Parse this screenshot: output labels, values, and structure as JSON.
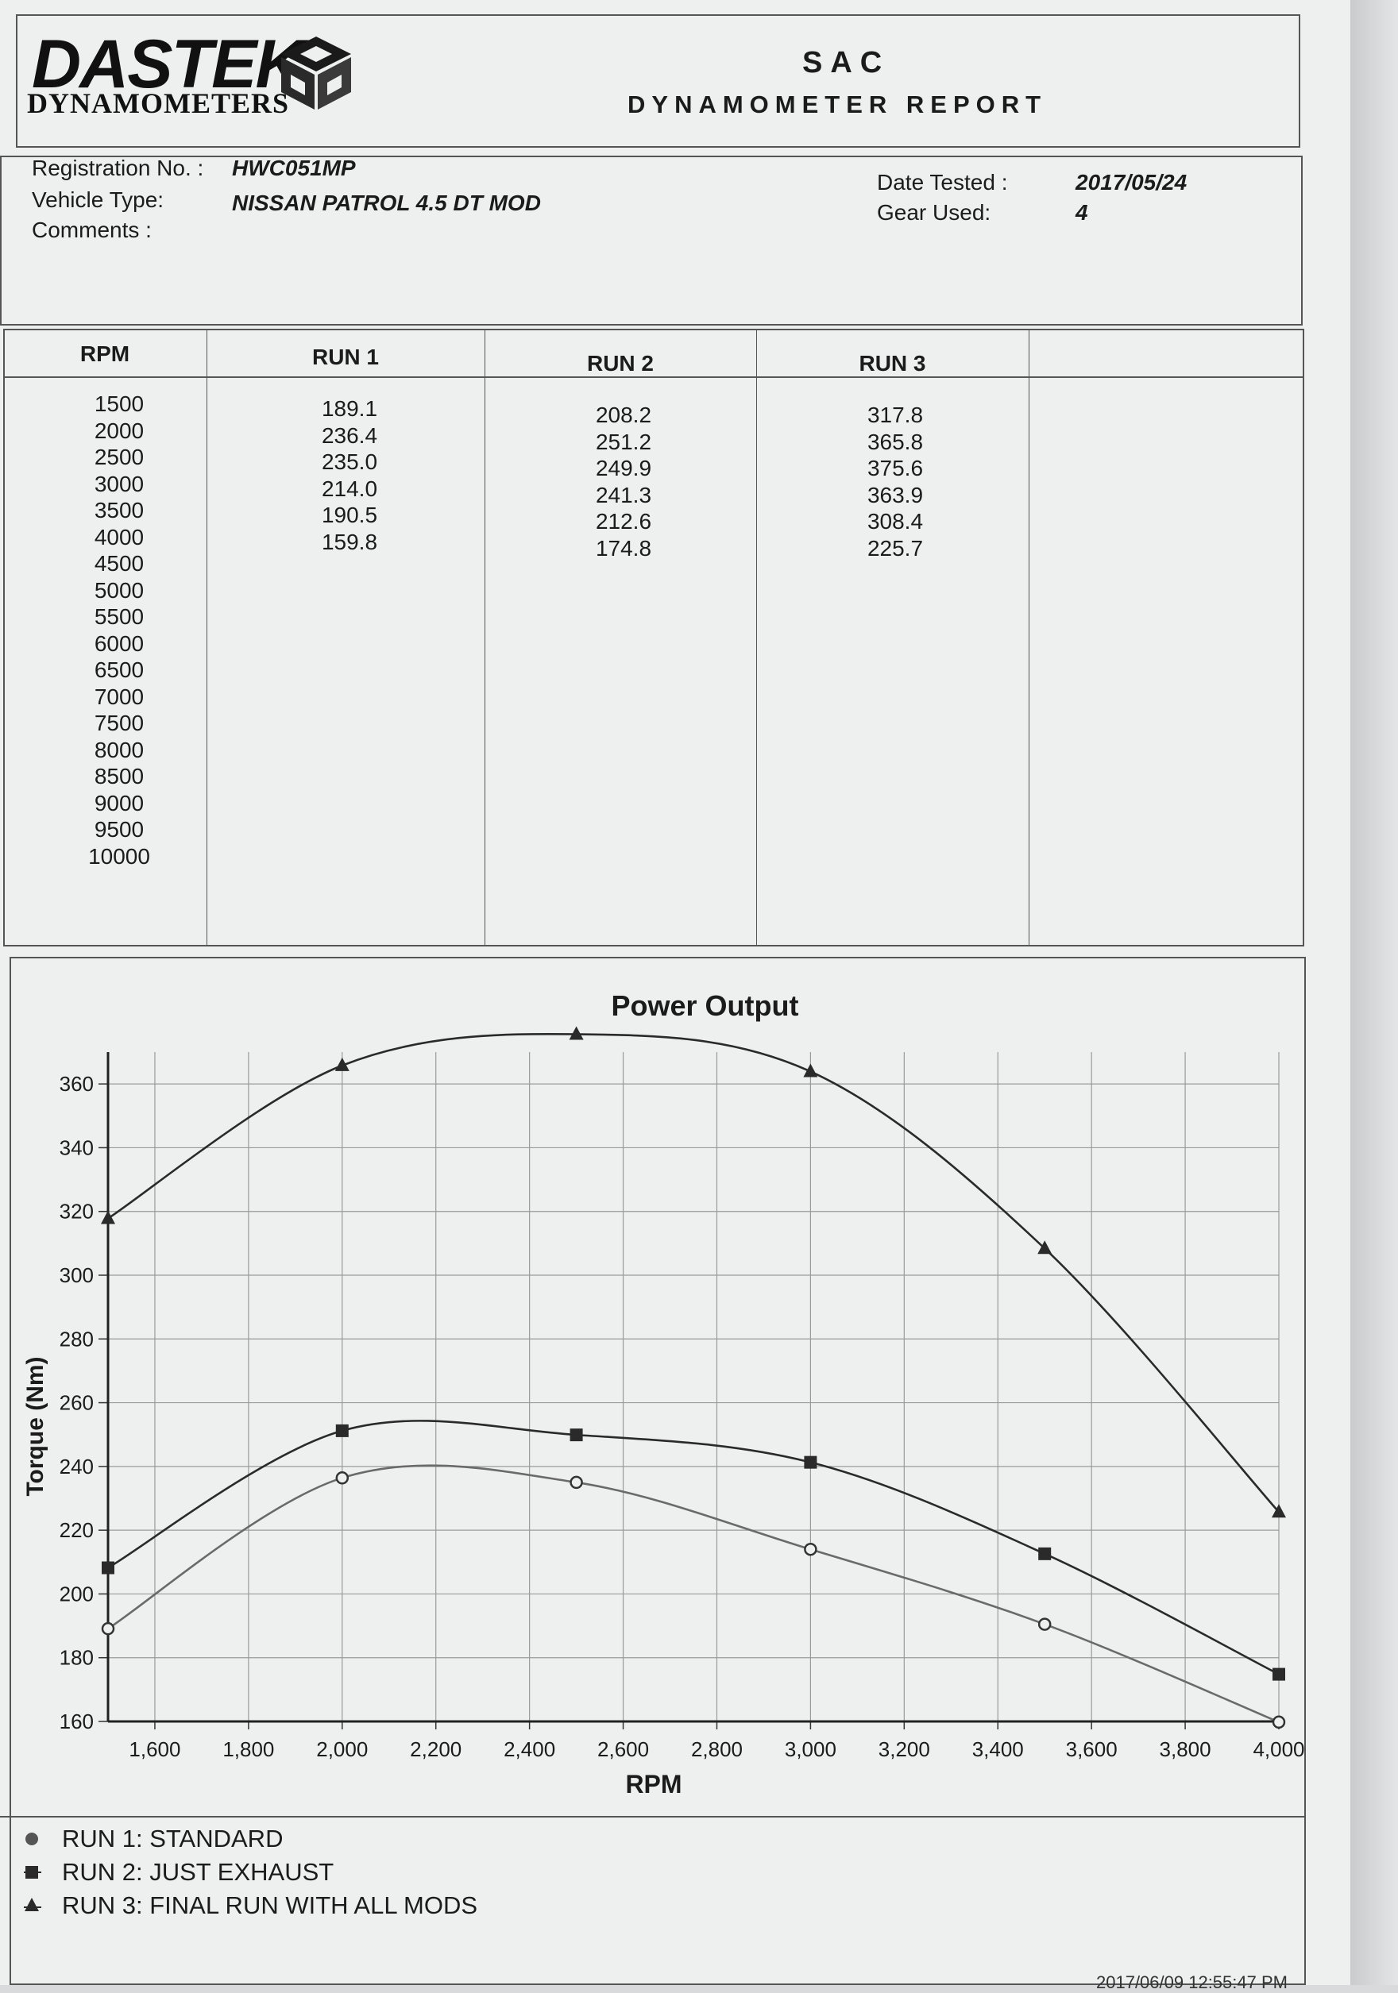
{
  "header": {
    "logo_word": "DASTEK",
    "logo_sub": "DYNAMOMETERS",
    "title": "SAC",
    "subtitle": "DYNAMOMETER REPORT"
  },
  "info": {
    "registration_label": "Registration No. :",
    "registration_value": "HWC051MP",
    "vehicle_label": "Vehicle Type:",
    "vehicle_value": "NISSAN PATROL 4.5 DT MOD",
    "comments_label": "Comments :",
    "date_label": "Date Tested :",
    "date_value": "2017/05/24",
    "gear_label": "Gear Used:",
    "gear_value": "4"
  },
  "table": {
    "headers": [
      "RPM",
      "RUN 1",
      "RUN 2",
      "RUN 3",
      ""
    ],
    "rpm": [
      "1500",
      "2000",
      "2500",
      "3000",
      "3500",
      "4000",
      "4500",
      "5000",
      "5500",
      "6000",
      "6500",
      "7000",
      "7500",
      "8000",
      "8500",
      "9000",
      "9500",
      "10000"
    ],
    "run1": [
      "189.1",
      "236.4",
      "235.0",
      "214.0",
      "190.5",
      "159.8"
    ],
    "run2": [
      "208.2",
      "251.2",
      "249.9",
      "241.3",
      "212.6",
      "174.8"
    ],
    "run3": [
      "317.8",
      "365.8",
      "375.6",
      "363.9",
      "308.4",
      "225.7"
    ]
  },
  "chart_data": {
    "type": "line",
    "title": "Power Output",
    "xlabel": "RPM",
    "ylabel": "Torque (Nm)",
    "xlim": [
      1500,
      4000
    ],
    "ylim": [
      160,
      370
    ],
    "xticks": [
      "1,600",
      "1,800",
      "2,000",
      "2,200",
      "2,400",
      "2,600",
      "2,800",
      "3,000",
      "3,200",
      "3,400",
      "3,600",
      "3,800",
      "4,000"
    ],
    "yticks": [
      "160",
      "180",
      "200",
      "220",
      "240",
      "260",
      "280",
      "300",
      "320",
      "340",
      "360"
    ],
    "grid": true,
    "x": [
      1500,
      2000,
      2500,
      3000,
      3500,
      4000
    ],
    "series": [
      {
        "name": "RUN 1: STANDARD",
        "marker": "circle",
        "color": "#6a6a6a",
        "values": [
          189.1,
          236.4,
          235.0,
          214.0,
          190.5,
          159.8
        ]
      },
      {
        "name": "RUN 2: JUST EXHAUST",
        "marker": "square",
        "color": "#2a2a2a",
        "values": [
          208.2,
          251.2,
          249.9,
          241.3,
          212.6,
          174.8
        ]
      },
      {
        "name": "RUN 3: FINAL RUN WITH ALL MODS",
        "marker": "triangle",
        "color": "#2a2a2a",
        "values": [
          317.8,
          365.8,
          375.6,
          363.9,
          308.4,
          225.7
        ]
      }
    ],
    "legend_position": "bottom-left"
  },
  "footer": {
    "timestamp": "2017/06/09 12:55:47 PM"
  }
}
